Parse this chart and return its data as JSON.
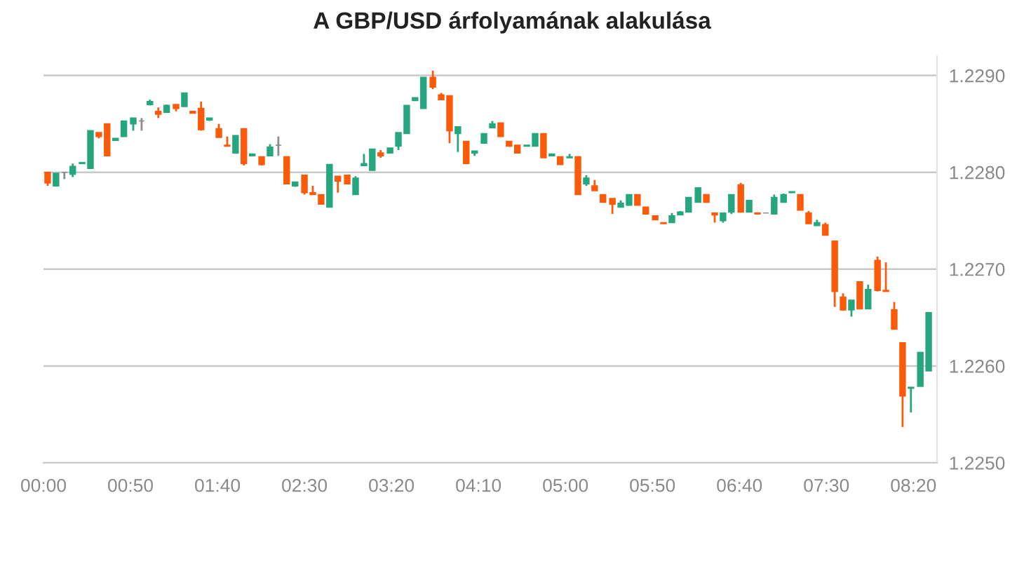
{
  "chart_data": {
    "type": "candlestick",
    "title": "A GBP/USD árfolyamának alakulása",
    "x": [
      0.04,
      0.12,
      0.2,
      0.28,
      0.37,
      0.45,
      0.53,
      0.61,
      0.69,
      0.77,
      0.86,
      0.94,
      1.02,
      1.1,
      1.18,
      1.27,
      1.35,
      1.43,
      1.51,
      1.59,
      1.68,
      1.76,
      1.84,
      1.92,
      2.0,
      2.09,
      2.17,
      2.25,
      2.33,
      2.41,
      2.5,
      2.58,
      2.66,
      2.74,
      2.82,
      2.91,
      2.99,
      3.07,
      3.15,
      3.23,
      3.32,
      3.4,
      3.48,
      3.56,
      3.64,
      3.73,
      3.81,
      3.89,
      3.97,
      4.05,
      4.13,
      4.22,
      4.3,
      4.38,
      4.46,
      4.54,
      4.63,
      4.71,
      4.79,
      4.87,
      4.95,
      5.04,
      5.12,
      5.2,
      5.28,
      5.36,
      5.45,
      5.53,
      5.61,
      5.69,
      5.77,
      5.86,
      5.94,
      6.02,
      6.1,
      6.18,
      6.27,
      6.35,
      6.43,
      6.51,
      6.59,
      6.68,
      6.76,
      6.84,
      6.92,
      7.0,
      7.09,
      7.17,
      7.25,
      7.33,
      7.41,
      7.49,
      7.58,
      7.66,
      7.74,
      7.82,
      7.9,
      7.99,
      8.07,
      8.15,
      8.23,
      8.31,
      8.4,
      8.48
    ],
    "ohlc": [
      [
        1.228,
        1.228,
        1.22786,
        1.22789
      ],
      [
        1.22786,
        1.22799,
        1.22786,
        1.22799
      ],
      [
        1.228,
        1.228,
        1.22793,
        1.228
      ],
      [
        1.22798,
        1.22809,
        1.22795,
        1.22806
      ],
      [
        1.22809,
        1.2281,
        1.22809,
        1.2281
      ],
      [
        1.22804,
        1.22843,
        1.22804,
        1.22843
      ],
      [
        1.22841,
        1.22841,
        1.22835,
        1.22837
      ],
      [
        1.2285,
        1.2285,
        1.22817,
        1.22817
      ],
      [
        1.22833,
        1.22835,
        1.22833,
        1.22835
      ],
      [
        1.22837,
        1.22853,
        1.22837,
        1.22853
      ],
      [
        1.2285,
        1.22856,
        1.22843,
        1.22856
      ],
      [
        1.22853,
        1.22856,
        1.22843,
        1.22853
      ],
      [
        1.2287,
        1.22875,
        1.22869,
        1.22873
      ],
      [
        1.22863,
        1.22867,
        1.22856,
        1.2286
      ],
      [
        1.22862,
        1.2287,
        1.22862,
        1.22869
      ],
      [
        1.2287,
        1.2287,
        1.22863,
        1.22866
      ],
      [
        1.22868,
        1.22882,
        1.22868,
        1.22882
      ],
      [
        1.22863,
        1.22863,
        1.22861,
        1.22861
      ],
      [
        1.22866,
        1.22873,
        1.22843,
        1.22844
      ],
      [
        1.22854,
        1.22856,
        1.22853,
        1.22856
      ],
      [
        1.22845,
        1.2285,
        1.22836,
        1.22836
      ],
      [
        1.22828,
        1.22837,
        1.22827,
        1.22827
      ],
      [
        1.2282,
        1.22838,
        1.2282,
        1.22838
      ],
      [
        1.22845,
        1.22845,
        1.22807,
        1.22809
      ],
      [
        1.22817,
        1.22819,
        1.22817,
        1.22819
      ],
      [
        1.22816,
        1.22816,
        1.22807,
        1.22808
      ],
      [
        1.22817,
        1.22829,
        1.22817,
        1.22826
      ],
      [
        1.22828,
        1.22837,
        1.22817,
        1.22828
      ],
      [
        1.22816,
        1.22816,
        1.22788,
        1.22788
      ],
      [
        1.22786,
        1.2279,
        1.22785,
        1.2279
      ],
      [
        1.22797,
        1.22797,
        1.22777,
        1.22779
      ],
      [
        1.22779,
        1.22786,
        1.22777,
        1.22777
      ],
      [
        1.22777,
        1.22777,
        1.22767,
        1.22767
      ],
      [
        1.22764,
        1.22808,
        1.22764,
        1.22808
      ],
      [
        1.22796,
        1.22796,
        1.22779,
        1.22791
      ],
      [
        1.22797,
        1.22797,
        1.22788,
        1.22788
      ],
      [
        1.22777,
        1.22796,
        1.22777,
        1.22794
      ],
      [
        1.22807,
        1.22819,
        1.22807,
        1.22809
      ],
      [
        1.22802,
        1.22824,
        1.22802,
        1.22824
      ],
      [
        1.2282,
        1.22823,
        1.22815,
        1.22817
      ],
      [
        1.2282,
        1.22825,
        1.2282,
        1.22825
      ],
      [
        1.22827,
        1.22841,
        1.22823,
        1.22841
      ],
      [
        1.2284,
        1.22869,
        1.2284,
        1.22869
      ],
      [
        1.22874,
        1.22877,
        1.22874,
        1.22877
      ],
      [
        1.22866,
        1.22898,
        1.22866,
        1.22898
      ],
      [
        1.22898,
        1.22905,
        1.22886,
        1.22888
      ],
      [
        1.2288,
        1.22882,
        1.22875,
        1.22875
      ],
      [
        1.22879,
        1.22879,
        1.2283,
        1.22843
      ],
      [
        1.2284,
        1.22847,
        1.22821,
        1.22847
      ],
      [
        1.22832,
        1.22832,
        1.22809,
        1.22809
      ],
      [
        1.2282,
        1.22822,
        1.22817,
        1.22822
      ],
      [
        1.2283,
        1.2284,
        1.2283,
        1.2284
      ],
      [
        1.22846,
        1.22853,
        1.22846,
        1.2285
      ],
      [
        1.22851,
        1.22851,
        1.22837,
        1.22837
      ],
      [
        1.22832,
        1.22832,
        1.22827,
        1.22827
      ],
      [
        1.22828,
        1.22828,
        1.2282,
        1.2282
      ],
      [
        1.22827,
        1.22828,
        1.22827,
        1.22828
      ],
      [
        1.22827,
        1.2284,
        1.22827,
        1.2284
      ],
      [
        1.2284,
        1.2284,
        1.22815,
        1.22815
      ],
      [
        1.22817,
        1.22819,
        1.22817,
        1.22819
      ],
      [
        1.22816,
        1.22816,
        1.22808,
        1.22808
      ],
      [
        1.22815,
        1.22819,
        1.22815,
        1.22816
      ],
      [
        1.22816,
        1.22816,
        1.22777,
        1.22777
      ],
      [
        1.22788,
        1.22797,
        1.22786,
        1.22794
      ],
      [
        1.22786,
        1.22792,
        1.22781,
        1.22781
      ],
      [
        1.22777,
        1.22777,
        1.22769,
        1.22769
      ],
      [
        1.22773,
        1.22773,
        1.22757,
        1.22767
      ],
      [
        1.22764,
        1.22771,
        1.22764,
        1.22768
      ],
      [
        1.22766,
        1.22777,
        1.22766,
        1.22777
      ],
      [
        1.22777,
        1.22777,
        1.22766,
        1.22766
      ],
      [
        1.22764,
        1.22764,
        1.22757,
        1.22757
      ],
      [
        1.22755,
        1.22755,
        1.22751,
        1.22751
      ],
      [
        1.22748,
        1.22748,
        1.22747,
        1.22747
      ],
      [
        1.22748,
        1.22758,
        1.22748,
        1.22755
      ],
      [
        1.22756,
        1.2276,
        1.22756,
        1.22759
      ],
      [
        1.22759,
        1.22774,
        1.22759,
        1.22774
      ],
      [
        1.22769,
        1.22784,
        1.22769,
        1.22784
      ],
      [
        1.22777,
        1.22777,
        1.22769,
        1.22769
      ],
      [
        1.22758,
        1.22758,
        1.22748,
        1.22756
      ],
      [
        1.2275,
        1.22758,
        1.22748,
        1.22758
      ],
      [
        1.22759,
        1.22777,
        1.22757,
        1.22777
      ],
      [
        1.22787,
        1.22789,
        1.22759,
        1.22759
      ],
      [
        1.22759,
        1.22771,
        1.22759,
        1.22771
      ],
      [
        1.22758,
        1.22758,
        1.22757,
        1.22757
      ],
      [
        1.22758,
        1.22758,
        1.22758,
        1.22758
      ],
      [
        1.22757,
        1.22777,
        1.22757,
        1.22774
      ],
      [
        1.22769,
        1.22778,
        1.22769,
        1.22777
      ],
      [
        1.22779,
        1.2278,
        1.22779,
        1.2278
      ],
      [
        1.22777,
        1.22777,
        1.22761,
        1.22761
      ],
      [
        1.22758,
        1.2276,
        1.22747,
        1.22747
      ],
      [
        1.22745,
        1.22751,
        1.22745,
        1.22748
      ],
      [
        1.22746,
        1.22748,
        1.22735,
        1.22735
      ],
      [
        1.22729,
        1.22729,
        1.22661,
        1.22677
      ],
      [
        1.22671,
        1.22675,
        1.22657,
        1.22658
      ],
      [
        1.22658,
        1.22668,
        1.22651,
        1.22668
      ],
      [
        1.22687,
        1.22687,
        1.22659,
        1.22659
      ],
      [
        1.22659,
        1.22684,
        1.22659,
        1.22679
      ],
      [
        1.22709,
        1.22713,
        1.22677,
        1.22678
      ],
      [
        1.22678,
        1.22707,
        1.22677,
        1.22677
      ],
      [
        1.22658,
        1.22666,
        1.22638,
        1.22638
      ],
      [
        1.22624,
        1.22624,
        1.22537,
        1.22569
      ],
      [
        1.22577,
        1.22578,
        1.22552,
        1.22578
      ],
      [
        1.22579,
        1.22614,
        1.22579,
        1.22614
      ],
      [
        1.22595,
        1.22655,
        1.22595,
        1.22655
      ]
    ],
    "colors": [
      "#fa5a0a",
      "#26a67f",
      "#8c8c8c",
      "#26a67f",
      "#26a67f",
      "#26a67f",
      "#fa5a0a",
      "#fa5a0a",
      "#26a67f",
      "#26a67f",
      "#26a67f",
      "#8c8c8c",
      "#26a67f",
      "#fa5a0a",
      "#26a67f",
      "#fa5a0a",
      "#26a67f",
      "#fa5a0a",
      "#fa5a0a",
      "#26a67f",
      "#fa5a0a",
      "#fa5a0a",
      "#26a67f",
      "#fa5a0a",
      "#26a67f",
      "#fa5a0a",
      "#26a67f",
      "#8c8c8c",
      "#fa5a0a",
      "#26a67f",
      "#fa5a0a",
      "#fa5a0a",
      "#fa5a0a",
      "#26a67f",
      "#fa5a0a",
      "#fa5a0a",
      "#26a67f",
      "#26a67f",
      "#26a67f",
      "#fa5a0a",
      "#26a67f",
      "#26a67f",
      "#26a67f",
      "#26a67f",
      "#26a67f",
      "#fa5a0a",
      "#fa5a0a",
      "#fa5a0a",
      "#26a67f",
      "#fa5a0a",
      "#26a67f",
      "#26a67f",
      "#26a67f",
      "#fa5a0a",
      "#fa5a0a",
      "#fa5a0a",
      "#26a67f",
      "#26a67f",
      "#fa5a0a",
      "#26a67f",
      "#fa5a0a",
      "#26a67f",
      "#fa5a0a",
      "#26a67f",
      "#fa5a0a",
      "#fa5a0a",
      "#fa5a0a",
      "#26a67f",
      "#26a67f",
      "#fa5a0a",
      "#fa5a0a",
      "#fa5a0a",
      "#fa5a0a",
      "#26a67f",
      "#26a67f",
      "#26a67f",
      "#26a67f",
      "#fa5a0a",
      "#fa5a0a",
      "#26a67f",
      "#26a67f",
      "#fa5a0a",
      "#26a67f",
      "#fa5a0a",
      "#8c8c8c",
      "#26a67f",
      "#26a67f",
      "#26a67f",
      "#fa5a0a",
      "#fa5a0a",
      "#26a67f",
      "#fa5a0a",
      "#fa5a0a",
      "#fa5a0a",
      "#26a67f",
      "#fa5a0a",
      "#26a67f",
      "#fa5a0a",
      "#fa5a0a",
      "#fa5a0a",
      "#fa5a0a",
      "#26a67f",
      "#26a67f",
      "#26a67f"
    ],
    "xlim": [
      0,
      8.56
    ],
    "xticks": [
      {
        "value": 0,
        "label": "00:00"
      },
      {
        "value": 0.8333,
        "label": "00:50"
      },
      {
        "value": 1.6667,
        "label": "01:40"
      },
      {
        "value": 2.5,
        "label": "02:30"
      },
      {
        "value": 3.3333,
        "label": "03:20"
      },
      {
        "value": 4.1667,
        "label": "04:10"
      },
      {
        "value": 5,
        "label": "05:00"
      },
      {
        "value": 5.8333,
        "label": "05:50"
      },
      {
        "value": 6.6667,
        "label": "06:40"
      },
      {
        "value": 7.5,
        "label": "07:30"
      },
      {
        "value": 8.3333,
        "label": "08:20"
      }
    ],
    "ylim": [
      1.225,
      1.2292
    ],
    "yticks": [
      {
        "value": 1.225,
        "label": "1.2250"
      },
      {
        "value": 1.226,
        "label": "1.2260"
      },
      {
        "value": 1.227,
        "label": "1.2270"
      },
      {
        "value": 1.228,
        "label": "1.2280"
      },
      {
        "value": 1.229,
        "label": "1.2290"
      }
    ],
    "grid": "y"
  }
}
